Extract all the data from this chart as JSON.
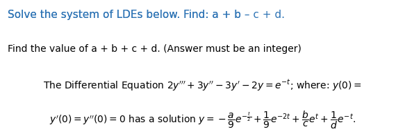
{
  "line1": "Solve the system of LDEs below. Find: a + b - c + d.",
  "line2": "Find the value of a + b + c + d. (Answer must be an integer)",
  "line3_part1": "The Differential Equation 2y″′ + 3y″ – 3y′ – 2y = e",
  "line3_sup1": "−t",
  "line3_part2": "; where: y(0) =",
  "line4_part1": "y′(0) = y″(0) = 0 has a solution y = −",
  "bg_color": "#ffffff",
  "text_color": "#000000",
  "title_color": "#2e74b5",
  "font_size_title": 11,
  "font_size_body": 10,
  "font_size_eq": 10
}
